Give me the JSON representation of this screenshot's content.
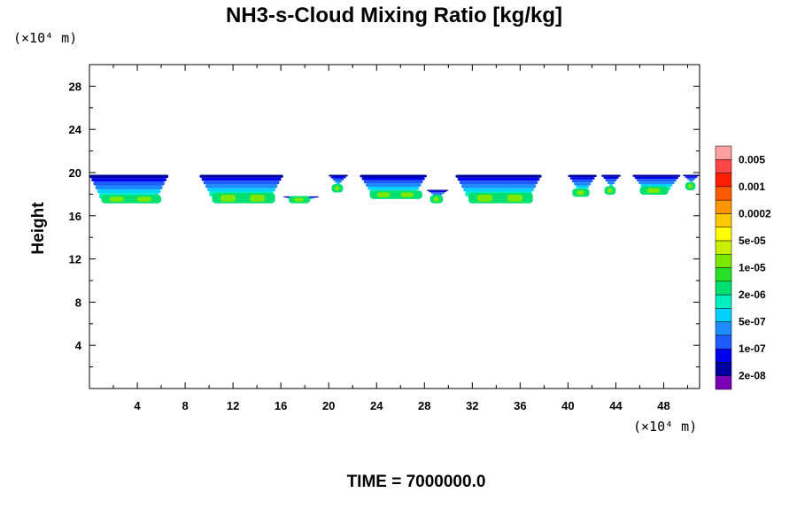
{
  "chart_data": {
    "type": "heatmap",
    "title": "NH3-s-Cloud Mixing Ratio [kg/kg]",
    "ylabel": "Height",
    "x_unit": "(×10⁴ m)",
    "y_unit": "(×10⁴ m)",
    "xlim": [
      0,
      51
    ],
    "ylim": [
      0,
      30
    ],
    "x_ticks": [
      4,
      8,
      12,
      16,
      20,
      24,
      28,
      32,
      36,
      40,
      44,
      48
    ],
    "y_ticks": [
      4,
      8,
      12,
      16,
      20,
      24,
      28
    ],
    "colorbar": {
      "colors": [
        "#7a00b8",
        "#00009e",
        "#0000ee",
        "#1e5cff",
        "#1e8cff",
        "#00d2ff",
        "#00f0c0",
        "#00e070",
        "#28e028",
        "#7ce800",
        "#c8f000",
        "#ffff00",
        "#ffc800",
        "#ff9600",
        "#ff5a00",
        "#ff1e00",
        "#ff4646",
        "#ffa0a0"
      ],
      "labels": [
        "2e-08",
        "1e-07",
        "5e-07",
        "2e-06",
        "1e-05",
        "5e-05",
        "0.0002",
        "0.001",
        "0.005"
      ]
    },
    "cloud_segments": [
      {
        "x": [
          0.0,
          6.6
        ],
        "top": 19.8,
        "bottom": 17.6,
        "core_bottom": 17.4
      },
      {
        "x": [
          9.2,
          16.2
        ],
        "top": 19.8,
        "bottom": 17.8,
        "core_bottom": 17.4
      },
      {
        "x": [
          16.2,
          19.2
        ],
        "top": 17.8,
        "bottom": 17.5,
        "core_bottom": 17.4
      },
      {
        "x": [
          20.0,
          21.6
        ],
        "top": 19.8,
        "bottom": 18.6,
        "core_bottom": 18.4
      },
      {
        "x": [
          22.6,
          28.2
        ],
        "top": 19.8,
        "bottom": 18.0,
        "core_bottom": 17.8
      },
      {
        "x": [
          28.2,
          30.0
        ],
        "top": 18.4,
        "bottom": 17.6,
        "core_bottom": 17.4
      },
      {
        "x": [
          30.6,
          37.8
        ],
        "top": 19.8,
        "bottom": 17.8,
        "core_bottom": 17.4
      },
      {
        "x": [
          40.0,
          42.4
        ],
        "top": 19.8,
        "bottom": 18.2,
        "core_bottom": 18.0
      },
      {
        "x": [
          42.8,
          44.4
        ],
        "top": 19.8,
        "bottom": 18.4,
        "core_bottom": 18.2
      },
      {
        "x": [
          45.4,
          49.4
        ],
        "top": 19.8,
        "bottom": 18.4,
        "core_bottom": 18.2
      },
      {
        "x": [
          49.6,
          51.0
        ],
        "top": 19.8,
        "bottom": 18.8,
        "core_bottom": 18.6
      }
    ]
  },
  "footer": {
    "time_label": "TIME = 7000000.0"
  }
}
